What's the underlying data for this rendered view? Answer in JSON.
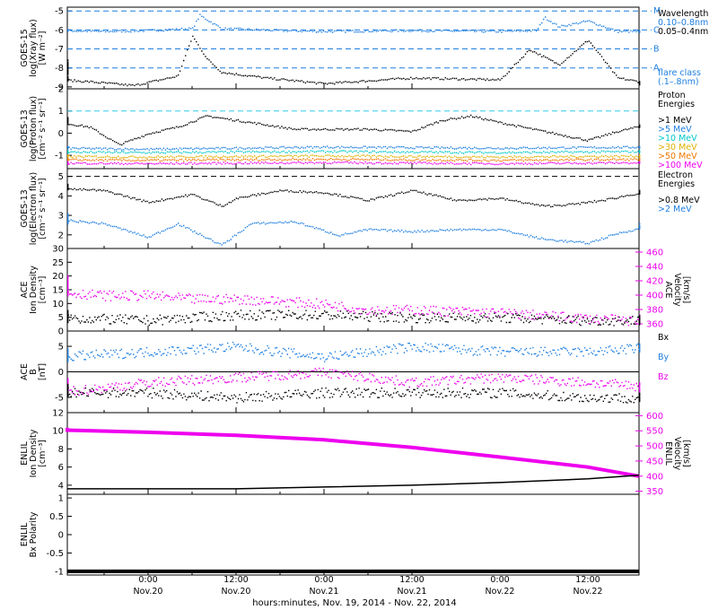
{
  "x_axis": {
    "title": "hours:minutes, Nov. 19, 2014 - Nov. 22, 2014",
    "ticks": [
      {
        "time": "0:00",
        "day": "Nov.20"
      },
      {
        "time": "12:00",
        "day": "Nov.20"
      },
      {
        "time": "0:00",
        "day": "Nov.21"
      },
      {
        "time": "12:00",
        "day": "Nov.21"
      },
      {
        "time": "0:00",
        "day": "Nov.22"
      },
      {
        "time": "12:00",
        "day": "Nov.22"
      }
    ]
  },
  "chart_data": [
    {
      "id": "xray",
      "type": "scatter",
      "ylabel_lines": [
        "GOES-15",
        "log(Xray flux)",
        "[W m⁻²]"
      ],
      "ylim": [
        -9.1,
        -4.8
      ],
      "yticks": [
        -9,
        -8,
        -7,
        -6,
        -5
      ],
      "legend": [
        "Wavelength",
        "0.10–0.8nm",
        "0.05–0.4nm",
        "flare class",
        "(.1–.8nm)"
      ],
      "legend_colors": [
        "#000000",
        "#1e7fe0",
        "#000000",
        "#1e7fe0",
        "#1e7fe0"
      ],
      "flare_classes": [
        {
          "label": "M",
          "level": -5
        },
        {
          "label": "C",
          "level": -6
        },
        {
          "label": "B",
          "level": -7
        },
        {
          "label": "A",
          "level": -8
        }
      ],
      "series": [
        {
          "color": "#1e7fe0",
          "points": [
            [
              -24,
              -6.0
            ],
            [
              -12,
              -6.0
            ],
            [
              -6,
              -6.05
            ],
            [
              0,
              -6.0
            ],
            [
              6,
              -5.9
            ],
            [
              7,
              -5.2
            ],
            [
              10,
              -5.9
            ],
            [
              18,
              -6.0
            ],
            [
              24,
              -6.05
            ],
            [
              36,
              -6.0
            ],
            [
              48,
              -6.05
            ],
            [
              53,
              -6.0
            ],
            [
              54,
              -5.3
            ],
            [
              56,
              -5.8
            ],
            [
              60,
              -5.5
            ],
            [
              64,
              -6.05
            ],
            [
              70,
              -6.05
            ]
          ]
        },
        {
          "color": "#000000",
          "points": [
            [
              -24,
              -7.6
            ],
            [
              -20,
              -7.9
            ],
            [
              -16,
              -8.5
            ],
            [
              -8,
              -8.7
            ],
            [
              -2,
              -8.9
            ],
            [
              4,
              -8.4
            ],
            [
              6,
              -6.3
            ],
            [
              8,
              -7.5
            ],
            [
              10,
              -8.2
            ],
            [
              16,
              -8.5
            ],
            [
              24,
              -8.8
            ],
            [
              36,
              -8.5
            ],
            [
              48,
              -8.6
            ],
            [
              52,
              -7.0
            ],
            [
              56,
              -7.8
            ],
            [
              60,
              -6.5
            ],
            [
              64,
              -8.5
            ],
            [
              70,
              -8.9
            ]
          ]
        }
      ]
    },
    {
      "id": "proton",
      "type": "scatter",
      "ylabel_lines": [
        "GOES-13",
        "log(Proton flux)",
        "[cm⁻² s⁻¹ sr⁻¹]"
      ],
      "ylim": [
        -1.6,
        2.0
      ],
      "yticks": [
        -1,
        0,
        1,
        2
      ],
      "legend": [
        "Proton",
        "Energies",
        ">1 MeV",
        ">5 MeV",
        ">10 MeV",
        ">30 MeV",
        ">50 MeV",
        ">100 MeV"
      ],
      "legend_colors": [
        "#000000",
        "#000000",
        "#000000",
        "#1e7fe0",
        "#00c8c8",
        "#e0b000",
        "#f07800",
        "#ee00ee"
      ],
      "threshold": 1,
      "series": [
        {
          "color": "#000000",
          "points": [
            [
              -24,
              0.6
            ],
            [
              -16,
              0.7
            ],
            [
              -8,
              0.3
            ],
            [
              -4,
              -0.5
            ],
            [
              0,
              0.0
            ],
            [
              4,
              0.3
            ],
            [
              8,
              0.8
            ],
            [
              14,
              0.5
            ],
            [
              20,
              0.2
            ],
            [
              26,
              0.2
            ],
            [
              30,
              0.2
            ],
            [
              36,
              0.1
            ],
            [
              40,
              0.6
            ],
            [
              44,
              0.8
            ],
            [
              48,
              0.5
            ],
            [
              54,
              0.1
            ],
            [
              60,
              -0.3
            ],
            [
              64,
              0.1
            ],
            [
              68,
              0.4
            ],
            [
              70,
              0.3
            ]
          ]
        },
        {
          "color": "#1e7fe0",
          "points": [
            [
              -24,
              -0.6
            ],
            [
              0,
              -0.7
            ],
            [
              24,
              -0.6
            ],
            [
              48,
              -0.65
            ],
            [
              70,
              -0.6
            ]
          ]
        },
        {
          "color": "#00c8c8",
          "points": [
            [
              -24,
              -0.8
            ],
            [
              0,
              -0.85
            ],
            [
              24,
              -0.8
            ],
            [
              48,
              -0.85
            ],
            [
              70,
              -0.8
            ]
          ]
        },
        {
          "color": "#e0b000",
          "points": [
            [
              -24,
              -1.0
            ],
            [
              0,
              -1.05
            ],
            [
              24,
              -1.0
            ],
            [
              48,
              -1.05
            ],
            [
              70,
              -1.0
            ]
          ]
        },
        {
          "color": "#f07800",
          "points": [
            [
              -24,
              -1.15
            ],
            [
              0,
              -1.2
            ],
            [
              24,
              -1.15
            ],
            [
              48,
              -1.2
            ],
            [
              70,
              -1.15
            ]
          ]
        },
        {
          "color": "#ee00ee",
          "points": [
            [
              -24,
              -1.3
            ],
            [
              0,
              -1.35
            ],
            [
              24,
              -1.3
            ],
            [
              48,
              -1.35
            ],
            [
              70,
              -1.3
            ]
          ]
        }
      ]
    },
    {
      "id": "electron",
      "type": "scatter",
      "ylabel_lines": [
        "GOES-13",
        "log(Electron flux)",
        "[cm⁻² s⁻¹ sr⁻¹]"
      ],
      "ylim": [
        1.3,
        5.4
      ],
      "yticks": [
        2,
        3,
        4,
        5
      ],
      "legend": [
        "Electron",
        "Energies",
        ">0.8 MeV",
        ">2 MeV"
      ],
      "legend_colors": [
        "#000000",
        "#000000",
        "#000000",
        "#1e7fe0"
      ],
      "threshold": 5,
      "series": [
        {
          "color": "#000000",
          "points": [
            [
              -24,
              4.4
            ],
            [
              -18,
              4.6
            ],
            [
              -12,
              4.4
            ],
            [
              -6,
              4.3
            ],
            [
              0,
              3.7
            ],
            [
              6,
              4.1
            ],
            [
              10,
              3.5
            ],
            [
              12,
              3.9
            ],
            [
              18,
              4.3
            ],
            [
              24,
              4.2
            ],
            [
              30,
              3.8
            ],
            [
              36,
              4.3
            ],
            [
              42,
              3.8
            ],
            [
              48,
              3.9
            ],
            [
              54,
              3.5
            ],
            [
              58,
              3.6
            ],
            [
              62,
              3.8
            ],
            [
              66,
              4.1
            ],
            [
              70,
              4.3
            ]
          ]
        },
        {
          "color": "#1e7fe0",
          "points": [
            [
              -24,
              2.6
            ],
            [
              -18,
              3.1
            ],
            [
              -12,
              2.8
            ],
            [
              -6,
              2.6
            ],
            [
              0,
              1.9
            ],
            [
              4,
              2.6
            ],
            [
              10,
              1.5
            ],
            [
              14,
              2.6
            ],
            [
              20,
              2.7
            ],
            [
              26,
              2.0
            ],
            [
              30,
              2.3
            ],
            [
              36,
              2.2
            ],
            [
              42,
              2.3
            ],
            [
              48,
              2.3
            ],
            [
              54,
              1.8
            ],
            [
              60,
              1.6
            ],
            [
              64,
              2.1
            ],
            [
              70,
              2.6
            ]
          ]
        }
      ]
    },
    {
      "id": "ace_density",
      "type": "scatter",
      "ylabel_lines": [
        "ACE",
        "Ion Density",
        "[cm⁻³]"
      ],
      "ylim": [
        0,
        30
      ],
      "yticks": [
        0,
        5,
        10,
        15,
        20,
        25,
        30
      ],
      "ylabel2_lines": [
        "ACE",
        "Velocity",
        "[km/s]"
      ],
      "y2lim": [
        350,
        465
      ],
      "y2ticks": [
        360,
        380,
        400,
        420,
        440,
        460
      ],
      "series": [
        {
          "color": "#ee00ee",
          "axis": 2,
          "points": [
            [
              -24,
              422
            ],
            [
              -18,
              415
            ],
            [
              -12,
              405
            ],
            [
              -6,
              400
            ],
            [
              0,
              400
            ],
            [
              6,
              395
            ],
            [
              12,
              395
            ],
            [
              18,
              392
            ],
            [
              24,
              388
            ],
            [
              30,
              380
            ],
            [
              36,
              380
            ],
            [
              42,
              378
            ],
            [
              48,
              376
            ],
            [
              54,
              372
            ],
            [
              60,
              368
            ],
            [
              66,
              365
            ],
            [
              70,
              372
            ]
          ]
        },
        {
          "color": "#000000",
          "axis": 1,
          "points": [
            [
              -24,
              6
            ],
            [
              -12,
              5
            ],
            [
              0,
              4
            ],
            [
              12,
              6
            ],
            [
              24,
              6
            ],
            [
              36,
              5
            ],
            [
              48,
              5
            ],
            [
              60,
              4
            ],
            [
              70,
              4
            ]
          ]
        }
      ]
    },
    {
      "id": "ace_b",
      "type": "scatter",
      "ylabel_lines": [
        "ACE",
        "B",
        "[nT]"
      ],
      "ylim": [
        -8,
        8
      ],
      "yticks": [
        -5,
        0,
        5
      ],
      "zero_line": true,
      "legend": [
        "Bx",
        "By",
        "Bz"
      ],
      "legend_colors": [
        "#000000",
        "#1e7fe0",
        "#ee00ee"
      ],
      "series": [
        {
          "color": "#1e7fe0",
          "points": [
            [
              -24,
              4
            ],
            [
              -12,
              3
            ],
            [
              0,
              4
            ],
            [
              12,
              5
            ],
            [
              24,
              3
            ],
            [
              36,
              5
            ],
            [
              48,
              4
            ],
            [
              60,
              4
            ],
            [
              70,
              5
            ]
          ]
        },
        {
          "color": "#ee00ee",
          "points": [
            [
              -24,
              -2
            ],
            [
              -12,
              -4
            ],
            [
              0,
              -2
            ],
            [
              12,
              -1
            ],
            [
              24,
              0
            ],
            [
              36,
              -2
            ],
            [
              48,
              -1
            ],
            [
              60,
              -2
            ],
            [
              70,
              -3
            ]
          ]
        },
        {
          "color": "#000000",
          "points": [
            [
              -24,
              -3
            ],
            [
              -12,
              -4
            ],
            [
              0,
              -4
            ],
            [
              12,
              -5
            ],
            [
              24,
              -4
            ],
            [
              36,
              -4
            ],
            [
              48,
              -4
            ],
            [
              60,
              -5
            ],
            [
              70,
              -5
            ]
          ]
        }
      ]
    },
    {
      "id": "enlil_density",
      "type": "line",
      "ylabel_lines": [
        "ENLIL",
        "Ion Density",
        "[cm⁻³]"
      ],
      "ylim": [
        3,
        12
      ],
      "yticks": [
        4,
        6,
        8,
        10,
        12
      ],
      "ylabel2_lines": [
        "ENLIL",
        "Velocity",
        "[km/s]"
      ],
      "y2lim": [
        340,
        610
      ],
      "y2ticks": [
        350,
        400,
        450,
        500,
        550,
        600
      ],
      "series": [
        {
          "color": "#ee00ee",
          "axis": 2,
          "points": [
            [
              -30,
              560
            ],
            [
              -12,
              552
            ],
            [
              0,
              545
            ],
            [
              12,
              535
            ],
            [
              24,
              520
            ],
            [
              36,
              495
            ],
            [
              48,
              463
            ],
            [
              60,
              430
            ],
            [
              72,
              400
            ]
          ]
        },
        {
          "color": "#000000",
          "axis": 1,
          "points": [
            [
              -30,
              3.6
            ],
            [
              0,
              3.6
            ],
            [
              12,
              3.6
            ],
            [
              24,
              3.8
            ],
            [
              36,
              4.0
            ],
            [
              48,
              4.3
            ],
            [
              60,
              4.7
            ],
            [
              72,
              5.1
            ]
          ]
        }
      ]
    },
    {
      "id": "enlil_polarity",
      "type": "line",
      "ylabel_lines": [
        "ENLIL",
        "Bx Polarity"
      ],
      "ylim": [
        -1.1,
        1.1
      ],
      "yticks": [
        -1.0,
        -0.5,
        0.0,
        0.5,
        1.0
      ],
      "series": [
        {
          "color": "#000000",
          "points": [
            [
              -30,
              -1.0
            ],
            [
              72,
              -1.0
            ]
          ]
        }
      ]
    }
  ]
}
